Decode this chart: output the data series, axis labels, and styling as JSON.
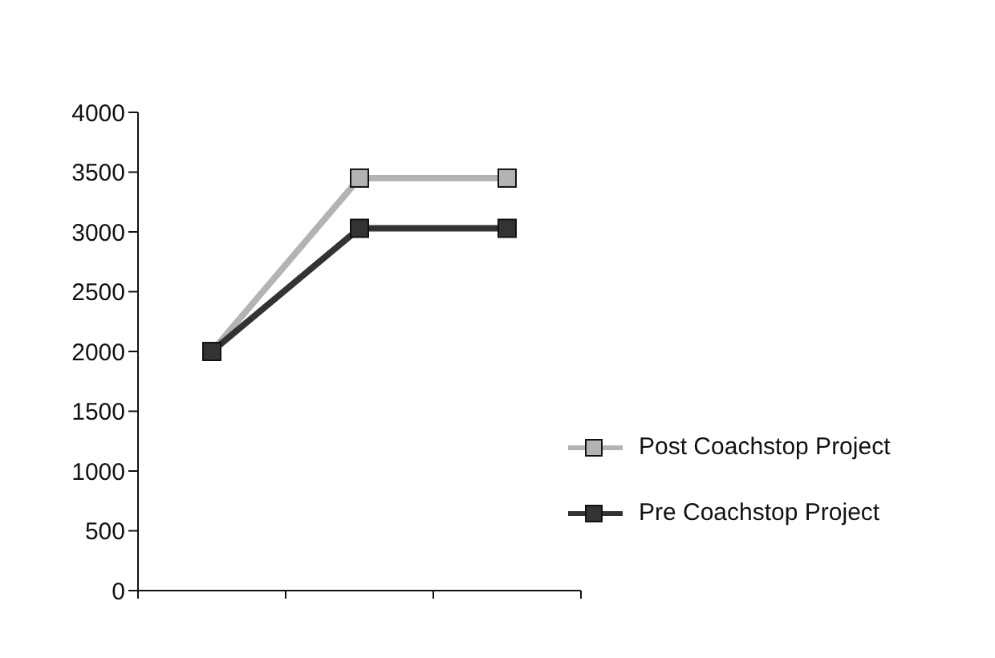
{
  "chart_data": {
    "type": "line",
    "categories": [
      null,
      null,
      null
    ],
    "series": [
      {
        "name": "Post Coachstop Project",
        "color": "#b3b3b3",
        "values": [
          2000,
          3450,
          3450
        ]
      },
      {
        "name": "Pre Coachstop Project",
        "color": "#333333",
        "values": [
          2000,
          3030,
          3030
        ]
      }
    ],
    "ylim": [
      0,
      4000
    ],
    "yticks": [
      0,
      500,
      1000,
      1500,
      2000,
      2500,
      3000,
      3500,
      4000
    ],
    "grid": false,
    "legend": "right",
    "marker": "square",
    "line_style": "solid"
  }
}
